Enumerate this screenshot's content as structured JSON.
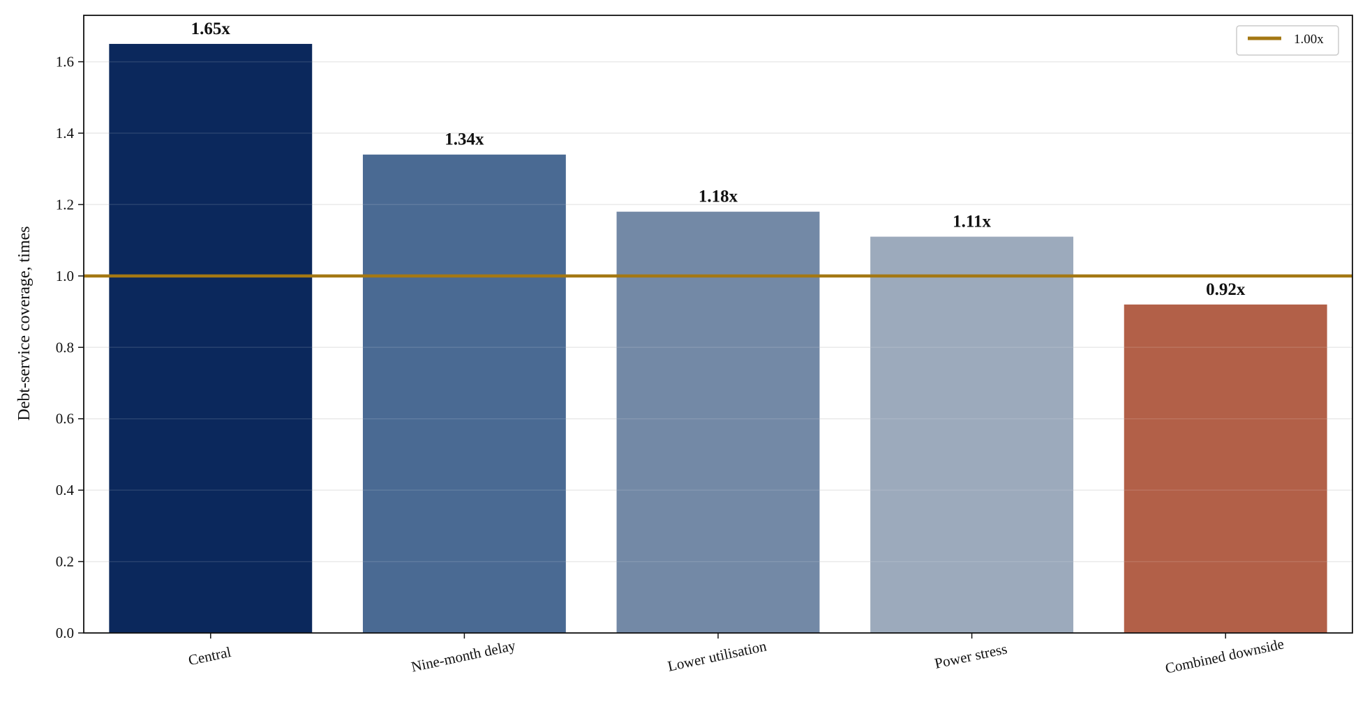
{
  "chart_data": {
    "type": "bar",
    "categories": [
      "Central",
      "Nine-month delay",
      "Lower utilisation",
      "Power stress",
      "Combined downside"
    ],
    "values": [
      1.65,
      1.34,
      1.18,
      1.11,
      0.92
    ],
    "value_labels": [
      "1.65x",
      "1.34x",
      "1.18x",
      "1.11x",
      "0.92x"
    ],
    "bar_colors": [
      "#0b285c",
      "#4a6a93",
      "#7389a6",
      "#9caabc",
      "#b26048"
    ],
    "title": "",
    "xlabel": "",
    "ylabel": "Debt-service coverage, times",
    "ylim": [
      0,
      1.73
    ],
    "yticks": [
      0.0,
      0.2,
      0.4,
      0.6,
      0.8,
      1.0,
      1.2,
      1.4,
      1.6
    ],
    "ytick_labels": [
      "0.0",
      "0.2",
      "0.4",
      "0.6",
      "0.8",
      "1.0",
      "1.2",
      "1.4",
      "1.6"
    ],
    "grid": "horizontal",
    "reference_line": {
      "value": 1.0,
      "label": "1.00x",
      "color": "#a47813"
    },
    "legend": {
      "position": "top-right",
      "entries": [
        "1.00x"
      ]
    }
  }
}
